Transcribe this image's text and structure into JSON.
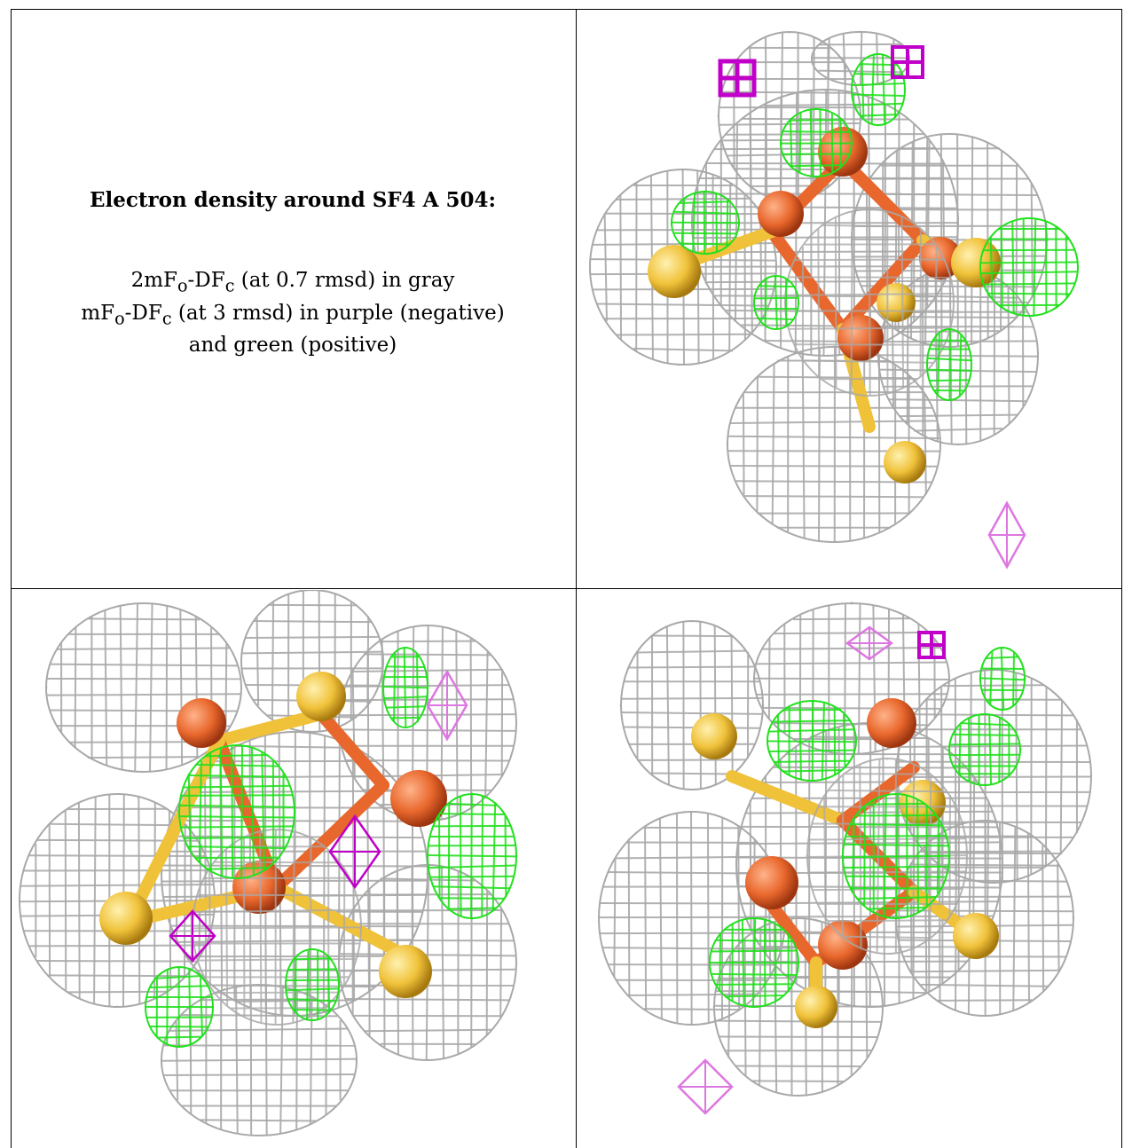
{
  "caption": {
    "title": "Electron density around SF4 A 504:",
    "map_2fofc": {
      "prefix": "2mF",
      "sub1": "o",
      "mid": "-DF",
      "sub2": "c",
      "suffix": " (at 0.7 rmsd) in gray"
    },
    "map_fofc": {
      "prefix": "mF",
      "sub1": "o",
      "mid": "-DF",
      "sub2": "c",
      "suffix": " (at 3 rmsd) in purple (negative)"
    },
    "map_fofc_cont": "and green (positive)"
  },
  "colors": {
    "mesh_gray": "#a9a9a9",
    "mesh_green": "#22e01e",
    "mesh_purple": "#c000c8",
    "mesh_purple_light": "#dd77e0",
    "iron": "#e8672c",
    "sulfur": "#f0c23a"
  },
  "panels": [
    "view-1",
    "view-2",
    "view-3"
  ]
}
